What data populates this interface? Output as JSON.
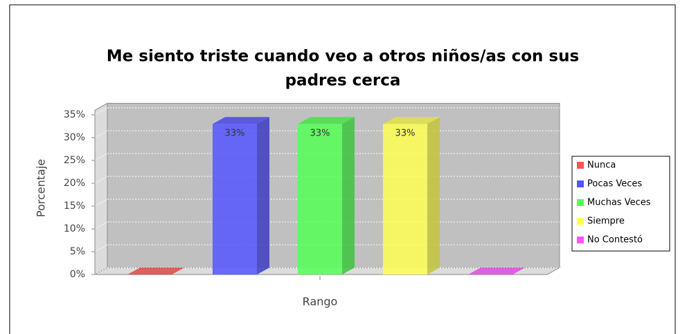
{
  "chart_data": {
    "type": "bar3d",
    "title": [
      "Me siento triste cuando veo a otros niños/as con sus",
      "padres cerca"
    ],
    "ylabel": "Porcentaje",
    "xlabel": "Rango",
    "ylim": [
      0,
      36
    ],
    "yticks": [
      {
        "value": 0,
        "label": "0%"
      },
      {
        "value": 5,
        "label": "5%"
      },
      {
        "value": 10,
        "label": "10%"
      },
      {
        "value": 15,
        "label": "15%"
      },
      {
        "value": 20,
        "label": "20%"
      },
      {
        "value": 25,
        "label": "25%"
      },
      {
        "value": 30,
        "label": "30%"
      },
      {
        "value": 35,
        "label": "35%"
      }
    ],
    "grid": true,
    "legend": "right",
    "series": [
      {
        "name": "Nunca",
        "color": "#ff5555",
        "values": [
          0
        ],
        "value_labels": [
          null
        ]
      },
      {
        "name": "Pocas Veces",
        "color": "#5555ff",
        "values": [
          33
        ],
        "value_labels": [
          "33%"
        ]
      },
      {
        "name": "Muchas Veces",
        "color": "#55ff55",
        "values": [
          33
        ],
        "value_labels": [
          "33%"
        ]
      },
      {
        "name": "Siempre",
        "color": "#ffff55",
        "values": [
          33
        ],
        "value_labels": [
          "33%"
        ]
      },
      {
        "name": "No Contestó",
        "color": "#ff55ff",
        "values": [
          0
        ],
        "value_labels": [
          null
        ]
      }
    ]
  }
}
